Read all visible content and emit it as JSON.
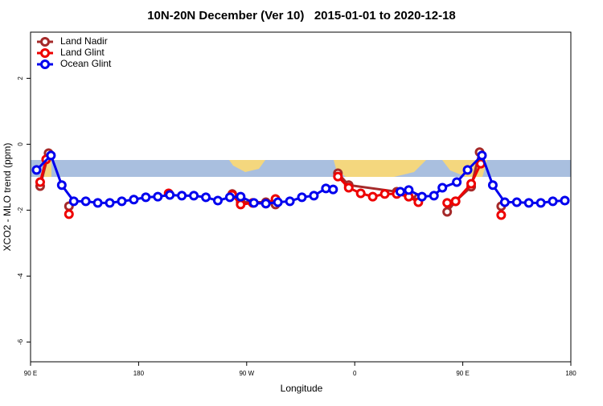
{
  "chart_data": {
    "type": "line",
    "title": "10N-20N December (Ver 10)   2015-01-01 to 2020-12-18",
    "xlabel": "Longitude",
    "ylabel": "XCO2 - MLO trend (ppm)",
    "xlim": [
      90,
      540
    ],
    "xticks": [
      {
        "value": 90,
        "label": "90 E"
      },
      {
        "value": 180,
        "label": "180"
      },
      {
        "value": 270,
        "label": "90 W"
      },
      {
        "value": 360,
        "label": "0"
      },
      {
        "value": 450,
        "label": "90 E"
      },
      {
        "value": 540,
        "label": "180"
      }
    ],
    "ylim": [
      -6.6,
      3.4
    ],
    "yticks": [
      -6,
      -4,
      -2,
      0,
      2
    ],
    "grid": false,
    "legend": "top-left",
    "series": [
      {
        "name": "Land Nadir",
        "color": "#a52a2a",
        "x": [
          98,
          105,
          null,
          122,
          null,
          258,
          265,
          286,
          294,
          null,
          346,
          355,
          395,
          405,
          413,
          null,
          437,
          444,
          457,
          464,
          null,
          482
        ],
        "values": [
          -1.27,
          -0.27,
          null,
          -1.88,
          null,
          -1.51,
          -1.76,
          -1.76,
          -1.83,
          null,
          -0.88,
          -1.24,
          -1.44,
          -1.59,
          -1.63,
          null,
          -2.05,
          -1.73,
          -1.29,
          -0.24,
          null,
          -1.88
        ]
      },
      {
        "name": "Land Glint",
        "color": "#ee0000",
        "x": [
          98,
          103,
          null,
          122,
          null,
          205,
          null,
          258,
          265,
          275,
          286,
          294,
          null,
          346,
          355,
          365,
          375,
          385,
          395,
          405,
          413,
          null,
          437,
          444,
          457,
          465,
          null,
          482
        ],
        "values": [
          -1.15,
          -0.46,
          null,
          -2.12,
          null,
          -1.49,
          null,
          -1.54,
          -1.83,
          -1.78,
          -1.8,
          -1.66,
          null,
          -0.98,
          -1.32,
          -1.49,
          -1.59,
          -1.51,
          -1.51,
          -1.59,
          -1.76,
          null,
          -1.78,
          -1.73,
          -1.2,
          -0.59,
          null,
          -2.15
        ]
      },
      {
        "name": "Ocean Glint",
        "color": "#0000ee",
        "x": [
          95,
          107,
          116,
          126,
          136,
          146,
          156,
          166,
          176,
          186,
          196,
          206,
          216,
          226,
          236,
          246,
          256,
          265,
          276,
          286,
          296,
          306,
          316,
          326,
          336,
          342,
          null,
          398,
          405,
          416,
          426,
          433,
          445,
          454,
          466,
          475,
          485,
          495,
          505,
          515,
          525,
          535
        ],
        "values": [
          -0.78,
          -0.34,
          -1.24,
          -1.73,
          -1.73,
          -1.78,
          -1.78,
          -1.73,
          -1.68,
          -1.61,
          -1.59,
          -1.54,
          -1.56,
          -1.56,
          -1.61,
          -1.71,
          -1.61,
          -1.59,
          -1.78,
          -1.8,
          -1.76,
          -1.73,
          -1.61,
          -1.56,
          -1.34,
          -1.37,
          null,
          -1.44,
          -1.39,
          -1.59,
          -1.56,
          -1.32,
          -1.15,
          -0.78,
          -0.34,
          -1.24,
          -1.76,
          -1.76,
          -1.78,
          -1.78,
          -1.73,
          -1.71
        ]
      }
    ]
  }
}
